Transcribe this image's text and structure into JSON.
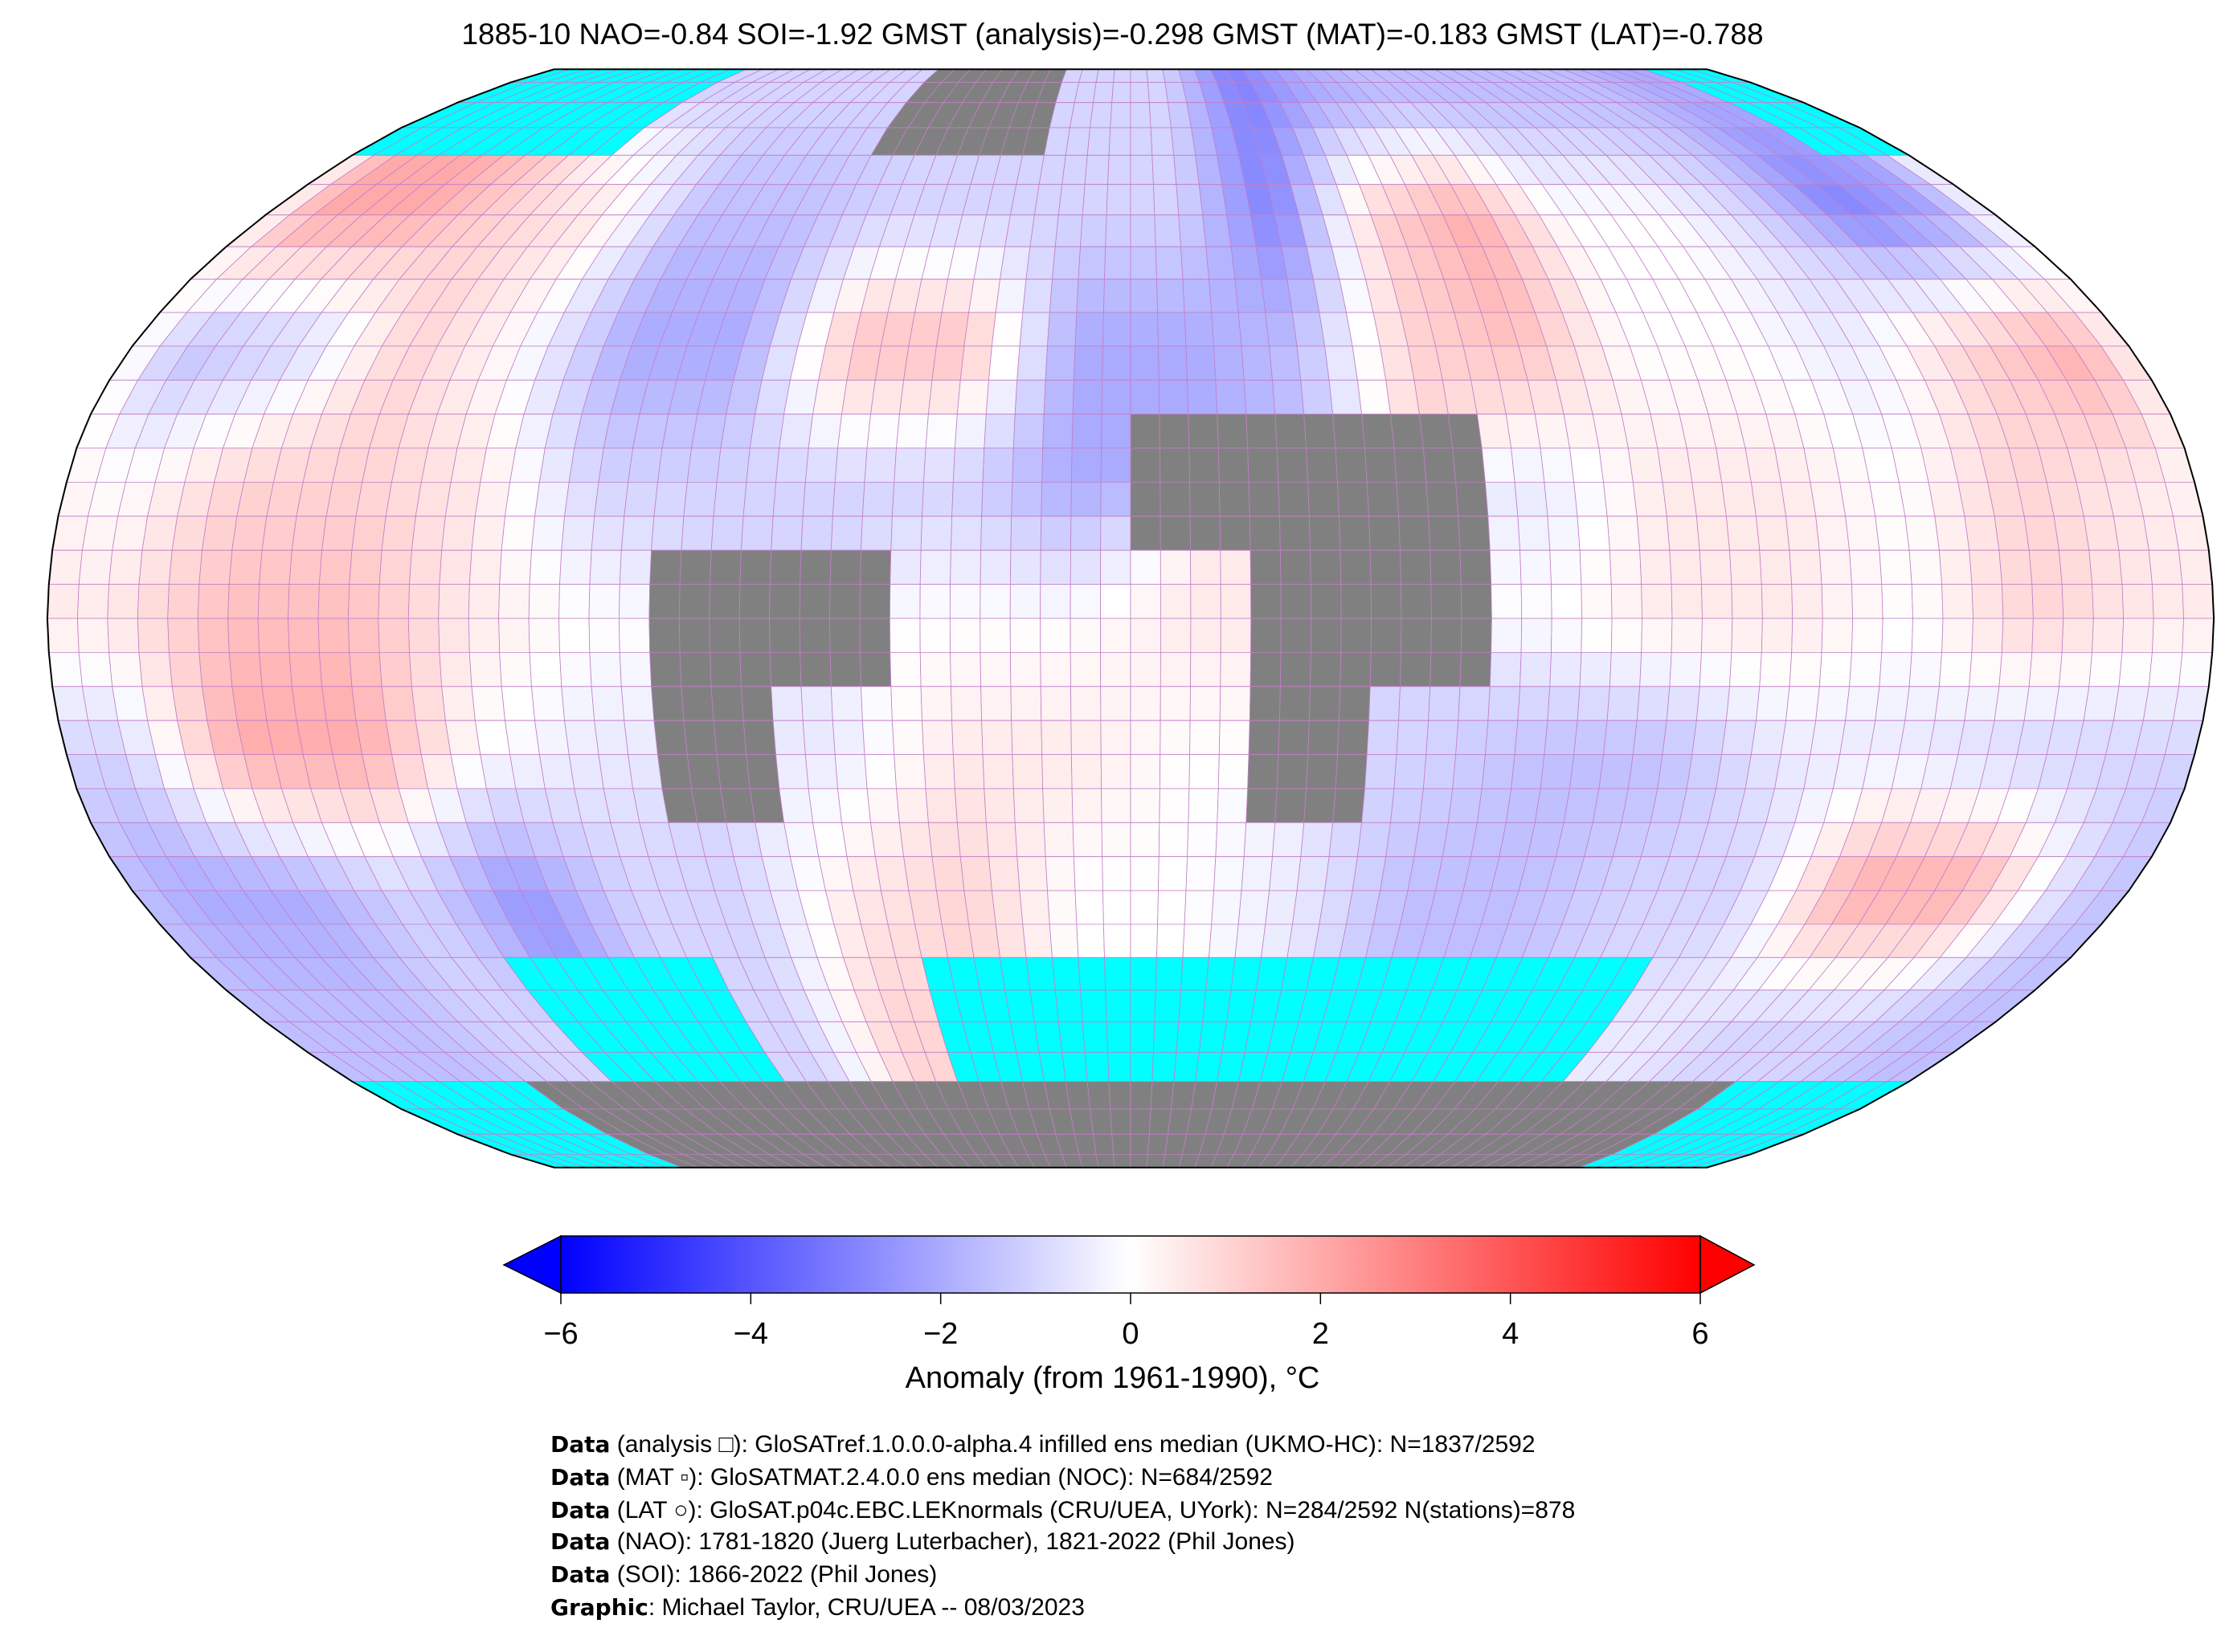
{
  "chart_data": {
    "type": "heatmap",
    "title": "1885-10 NAO=-0.84 SOI=-1.92 GMST (analysis)=-0.298 GMST (MAT)=-0.183 GMST (LAT)=-0.788",
    "projection": "Robinson",
    "grid_resolution_deg": 5,
    "coarse_grid_note": "approximate anomalies on 20x20 degree blocks; M = missing (grey), C = no data (cyan)",
    "lon_edges": [
      -180,
      -160,
      -140,
      -120,
      -100,
      -80,
      -60,
      -40,
      -20,
      0,
      20,
      40,
      60,
      80,
      100,
      120,
      140,
      160,
      180
    ],
    "lat_edges": [
      90,
      70,
      50,
      30,
      10,
      -10,
      -30,
      -50,
      -70,
      -90
    ],
    "values": [
      [
        "C",
        "C",
        "C",
        -1,
        -1,
        -1,
        "M",
        "M",
        -1,
        -1,
        -3,
        -2,
        -1.5,
        -1.5,
        -1.5,
        -1.5,
        -2,
        "C"
      ],
      [
        2,
        2,
        1,
        0.5,
        -1.5,
        -1.5,
        -1,
        -1,
        -1,
        -1,
        -3,
        1,
        2,
        0,
        0,
        -1,
        -3,
        -2
      ],
      [
        -1.5,
        -1,
        1,
        0,
        -2,
        -2,
        1.5,
        1.5,
        -2,
        -2,
        -1.5,
        1,
        1.5,
        0,
        0,
        -0.5,
        1,
        2
      ],
      [
        0,
        1,
        1,
        0.5,
        -1,
        -1,
        -1,
        -1,
        -2,
        "M",
        "M",
        "M",
        -0.5,
        0.5,
        0.5,
        0,
        1,
        0.5
      ],
      [
        0.5,
        1.5,
        1.5,
        0.5,
        0,
        "M",
        "M",
        0,
        0,
        0.5,
        "M",
        "M",
        0,
        0.5,
        0.5,
        0,
        1,
        0.5
      ],
      [
        -1,
        2,
        2,
        0,
        -0.5,
        "M",
        -0.5,
        0.5,
        0.5,
        0,
        "M",
        -1,
        -1.5,
        -1.5,
        -0.5,
        -0.5,
        -1,
        -1
      ],
      [
        -2,
        -2,
        -1,
        -2.5,
        -1,
        -1,
        0.5,
        1,
        0,
        0,
        -0.5,
        -1.5,
        -1.5,
        -1,
        -1,
        2,
        2,
        -1
      ],
      [
        -1.5,
        -1.5,
        -1,
        "C",
        "C",
        -1,
        1,
        "C",
        "C",
        "C",
        "C",
        "C",
        "C",
        "C",
        -0.5,
        -1,
        -1,
        -1.5
      ],
      [
        "C",
        "C",
        "M",
        "M",
        "M",
        "M",
        "M",
        "M",
        "M",
        "M",
        "M",
        "M",
        "M",
        "M",
        "M",
        "M",
        "C",
        "C"
      ]
    ],
    "colorbar": {
      "label": "Anomaly (from 1961-1990), °C",
      "vmin": -6,
      "vmax": 6,
      "ticks": [
        "−6",
        "−4",
        "−2",
        "0",
        "2",
        "4",
        "6"
      ],
      "tick_values": [
        -6,
        -4,
        -2,
        0,
        2,
        4,
        6
      ],
      "cmap": "bwr",
      "extend": "both"
    },
    "colors": {
      "low": "#0000ff",
      "mid": "#ffffff",
      "high": "#ff0000",
      "missing": "#808080",
      "nodata": "#00ffff",
      "gridline": "#c27fc8"
    }
  },
  "footer": [
    {
      "bold": "Data",
      "text": " (analysis □): GloSATref.1.0.0.0-alpha.4 infilled ens median (UKMO-HC): N=1837/2592"
    },
    {
      "bold": "Data",
      "text": " (MAT ▫): GloSATMAT.2.4.0.0 ens median (NOC): N=684/2592"
    },
    {
      "bold": "Data",
      "text": " (LAT ○): GloSAT.p04c.EBC.LEKnormals (CRU/UEA, UYork): N=284/2592 N(stations)=878"
    },
    {
      "bold": "Data",
      "text": " (NAO): 1781-1820 (Juerg Luterbacher), 1821-2022 (Phil Jones)"
    },
    {
      "bold": "Data",
      "text": " (SOI): 1866-2022 (Phil Jones)"
    },
    {
      "bold": "Graphic",
      "text": ": Michael Taylor, CRU/UEA -- 08/03/2023"
    }
  ]
}
